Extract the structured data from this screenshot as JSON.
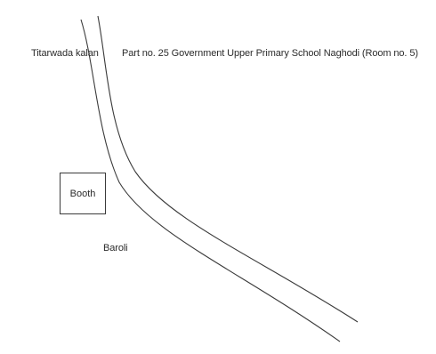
{
  "map": {
    "labels": {
      "village_north": "Titarwada kalan",
      "booth_description": "Part no. 25 Government Upper Primary School Naghodi (Room no. 5)",
      "booth": "Booth",
      "village_south": "Baroli"
    },
    "road": {
      "type": "curved road (two parallel edge lines)",
      "line_color": "#3a3a3a"
    },
    "colors": {
      "background": "#ffffff",
      "ink": "#2b2b2b"
    }
  }
}
